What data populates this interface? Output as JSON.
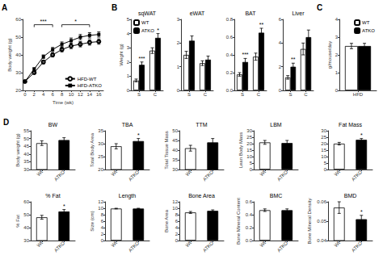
{
  "chart_data": [
    {
      "type": "line",
      "xlabel": "Time (wk)",
      "ylabel": "Body weight (g)",
      "x": [
        0,
        2,
        4,
        6,
        8,
        10,
        12,
        14,
        16
      ],
      "series": [
        {
          "name": "HFD-WT",
          "color": "#000000",
          "marker": "emptyCircle",
          "values": [
            25,
            30,
            36,
            40,
            43,
            45,
            46,
            47,
            47.5
          ],
          "errors": [
            0.5,
            0.8,
            1.0,
            1.2,
            1.3,
            1.5,
            1.5,
            1.5,
            1.5
          ]
        },
        {
          "name": "HFD-ATKO",
          "color": "#000000",
          "marker": "square",
          "values": [
            25,
            32,
            39,
            43,
            46,
            48,
            50,
            51,
            51.5
          ],
          "errors": [
            0.5,
            0.8,
            1.0,
            1.2,
            1.3,
            1.5,
            1.5,
            1.5,
            1.5
          ]
        }
      ],
      "xlim": [
        -0.5,
        17
      ],
      "xticks": [
        0,
        2,
        4,
        6,
        8,
        10,
        12,
        14,
        16
      ],
      "ylim": [
        20,
        60
      ],
      "yticks": [
        20,
        30,
        40,
        50,
        60
      ],
      "grid": false,
      "legend": "lower right",
      "annotations": [
        {
          "text": "A"
        },
        {
          "text": "***",
          "x1": 2,
          "x2": 6,
          "y": 57
        },
        {
          "text": "*",
          "x1": 8,
          "x2": 14,
          "y": 57
        }
      ]
    },
    {
      "type": "bar",
      "title": "sqWAT",
      "ylabel": "Weight (g)",
      "categories": [
        "S",
        "C"
      ],
      "series": [
        {
          "name": "WT",
          "color": "#ffffff",
          "values": [
            0.7,
            2.8
          ],
          "errors": [
            0.1,
            0.2
          ]
        },
        {
          "name": "ATKO",
          "color": "#000000",
          "values": [
            1.8,
            3.7
          ],
          "errors": [
            0.2,
            0.3
          ]
        }
      ],
      "ylim": [
        0,
        5
      ],
      "yticks": [
        0,
        1,
        2,
        3,
        4,
        5
      ],
      "grid": false,
      "legend": "upper left",
      "annotations": [
        {
          "text": "B"
        },
        {
          "text": "***",
          "category": "S",
          "series": "ATKO"
        },
        {
          "text": "*",
          "category": "C",
          "series": "ATKO"
        }
      ]
    },
    {
      "type": "bar",
      "title": "eWAT",
      "categories": [
        "S",
        "C"
      ],
      "series": [
        {
          "name": "WT",
          "color": "#ffffff",
          "values": [
            1.5,
            1.15
          ],
          "errors": [
            0.15,
            0.1
          ]
        },
        {
          "name": "ATKO",
          "color": "#000000",
          "values": [
            2.1,
            1.3
          ],
          "errors": [
            0.2,
            0.15
          ]
        }
      ],
      "ylim": [
        0,
        3
      ],
      "yticks": [
        0,
        1,
        2,
        3
      ],
      "grid": false
    },
    {
      "type": "bar",
      "title": "BAT",
      "categories": [
        "S",
        "C"
      ],
      "series": [
        {
          "name": "WT",
          "color": "#ffffff",
          "values": [
            0.18,
            0.38
          ],
          "errors": [
            0.02,
            0.04
          ]
        },
        {
          "name": "ATKO",
          "color": "#000000",
          "values": [
            0.32,
            0.65
          ],
          "errors": [
            0.04,
            0.05
          ]
        }
      ],
      "ylim": [
        0.0,
        0.8
      ],
      "yticks": [
        {
          "value": 0.0,
          "label": "0.0"
        },
        0.2,
        0.4,
        0.6,
        0.8
      ],
      "grid": false,
      "annotations": [
        {
          "text": "***",
          "category": "S",
          "series": "ATKO"
        },
        {
          "text": "**",
          "category": "C",
          "series": "ATKO"
        }
      ]
    },
    {
      "type": "bar",
      "title": "Liver",
      "categories": [
        "S",
        "C"
      ],
      "series": [
        {
          "name": "WT",
          "color": "#ffffff",
          "values": [
            1.1,
            3.5
          ],
          "errors": [
            0.15,
            0.5
          ]
        },
        {
          "name": "ATKO",
          "color": "#000000",
          "values": [
            2.0,
            4.5
          ],
          "errors": [
            0.3,
            0.6
          ]
        }
      ],
      "ylim": [
        0,
        6
      ],
      "yticks": [
        0,
        2,
        4,
        6
      ],
      "grid": false,
      "annotations": [
        {
          "text": "**",
          "category": "S",
          "series": "ATKO"
        }
      ]
    },
    {
      "type": "bar",
      "ylabel": "g/mouse/day",
      "categories": [
        "HFD"
      ],
      "series": [
        {
          "name": "WT",
          "color": "#ffffff",
          "values": [
            2.5
          ],
          "errors": [
            0.15
          ]
        },
        {
          "name": "ATKO",
          "color": "#000000",
          "values": [
            2.5
          ],
          "errors": [
            0.15
          ]
        }
      ],
      "ylim": [
        0,
        4
      ],
      "yticks": [
        0,
        1,
        2,
        3,
        4
      ],
      "grid": false,
      "legend": "upper right",
      "annotations": [
        {
          "text": "C"
        }
      ]
    },
    {
      "type": "bar",
      "title": "BW",
      "ylabel": "Body weight (g)",
      "categories": [
        "Wt",
        "ATKO"
      ],
      "values": [
        47.0,
        49.0
      ],
      "errors": [
        1.5,
        1.5
      ],
      "colors": [
        "#ffffff",
        "#000000"
      ],
      "ylim": [
        30,
        55
      ],
      "yticks": [
        30,
        35,
        40,
        45,
        50,
        55
      ],
      "grid": false,
      "annotations": [
        {
          "text": "D"
        }
      ]
    },
    {
      "type": "bar",
      "title": "TBA",
      "ylabel": "Total Body Area",
      "categories": [
        "Wt",
        "ATKO"
      ],
      "values": [
        29.0,
        31.0
      ],
      "errors": [
        1.0,
        1.0
      ],
      "colors": [
        "#ffffff",
        "#000000"
      ],
      "ylim": [
        20,
        35
      ],
      "yticks": [
        20,
        25,
        30,
        35
      ],
      "grid": false,
      "annotations": [
        {
          "text": "*",
          "category": "ATKO"
        }
      ]
    },
    {
      "type": "bar",
      "title": "TTM",
      "ylabel": "Total Tissue Mass",
      "categories": [
        "Wt",
        "ATKO"
      ],
      "values": [
        41.0,
        44.0
      ],
      "errors": [
        1.5,
        2.0
      ],
      "colors": [
        "#ffffff",
        "#000000"
      ],
      "ylim": [
        30,
        50
      ],
      "yticks": [
        30,
        35,
        40,
        45,
        50
      ],
      "grid": false
    },
    {
      "type": "bar",
      "title": "LBM",
      "ylabel": "Lean Body Mass",
      "categories": [
        "Wt",
        "ATKO"
      ],
      "values": [
        21.0,
        20.5
      ],
      "errors": [
        1.5,
        2.0
      ],
      "colors": [
        "#ffffff",
        "#000000"
      ],
      "ylim": [
        0,
        30
      ],
      "yticks": [
        0,
        5,
        10,
        15,
        20,
        25,
        30
      ],
      "grid": false
    },
    {
      "type": "bar",
      "title": "Fat Mass",
      "categories": [
        "Wt",
        "ATKO"
      ],
      "values": [
        20.0,
        23.0
      ],
      "errors": [
        1.0,
        1.0
      ],
      "colors": [
        "#ffffff",
        "#000000"
      ],
      "ylim": [
        0,
        30
      ],
      "yticks": [
        0,
        5,
        10,
        15,
        20,
        25,
        30
      ],
      "grid": false,
      "annotations": [
        {
          "text": "*",
          "category": "ATKO"
        }
      ]
    },
    {
      "type": "bar",
      "title": "% Fat",
      "ylabel": "% Fat",
      "categories": [
        "Wt",
        "ATKO"
      ],
      "values": [
        48.0,
        52.5
      ],
      "errors": [
        1.5,
        1.5
      ],
      "colors": [
        "#ffffff",
        "#000000"
      ],
      "ylim": [
        30,
        60
      ],
      "yticks": [
        30,
        40,
        50,
        60
      ],
      "grid": false,
      "annotations": [
        {
          "text": "*",
          "category": "ATKO"
        }
      ]
    },
    {
      "type": "bar",
      "title": "Length",
      "ylabel": "Size (cm)",
      "categories": [
        "Wt",
        "ATKO"
      ],
      "values": [
        9.9,
        9.9
      ],
      "errors": [
        0.1,
        0.1
      ],
      "colors": [
        "#ffffff",
        "#000000"
      ],
      "ylim": [
        0,
        12
      ],
      "yticks": [
        0,
        2,
        4,
        6,
        8,
        10,
        12
      ],
      "grid": false
    },
    {
      "type": "bar",
      "title": "Bone Area",
      "ylabel": "Bone Area",
      "categories": [
        "Wt",
        "ATKO"
      ],
      "values": [
        8.7,
        9.2
      ],
      "errors": [
        0.3,
        0.3
      ],
      "colors": [
        "#ffffff",
        "#000000"
      ],
      "ylim": [
        0,
        12
      ],
      "yticks": [
        0,
        2,
        4,
        6,
        8,
        10,
        12
      ],
      "grid": false
    },
    {
      "type": "bar",
      "title": "BMC",
      "ylabel": "Bone Mineral Content",
      "categories": [
        "Wt",
        "ATKO"
      ],
      "values": [
        0.47,
        0.47
      ],
      "errors": [
        0.02,
        0.02
      ],
      "colors": [
        "#ffffff",
        "#000000"
      ],
      "ylim": [
        0.0,
        0.6
      ],
      "yticks": [
        {
          "value": 0.0,
          "label": "0.0"
        },
        0.2,
        0.4,
        0.6
      ],
      "grid": false
    },
    {
      "type": "bar",
      "title": "BMD",
      "ylabel": "Bone Mineral Density",
      "categories": [
        "Wt",
        "ATKO"
      ],
      "values": [
        0.057,
        0.051
      ],
      "errors": [
        0.003,
        0.002
      ],
      "colors": [
        "#ffffff",
        "#000000"
      ],
      "ylim": [
        0.04,
        0.06
      ],
      "yticks": [
        0.04,
        0.05,
        0.06
      ],
      "grid": false,
      "annotations": [
        {
          "text": "*",
          "category": "ATKO"
        }
      ]
    }
  ]
}
